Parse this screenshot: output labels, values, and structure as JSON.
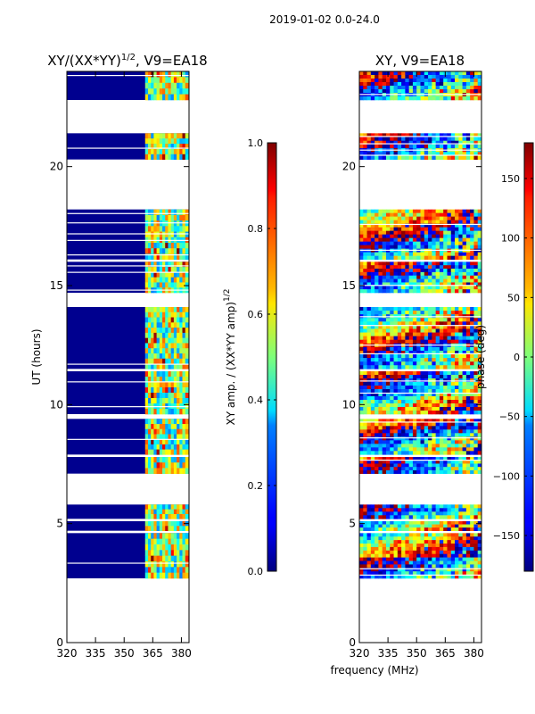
{
  "figure": {
    "suptitle": "2019-01-02 0.0-24.0",
    "xlabel_shared": "frequency (MHz)"
  },
  "chart_data": [
    {
      "type": "heatmap",
      "title_main": "XY/(XX*YY)",
      "title_exp": "1/2",
      "title_rest": ", V9=EA18",
      "xlabel": "",
      "ylabel": "UT (hours)",
      "xlim": [
        320,
        384
      ],
      "ylim": [
        0,
        24
      ],
      "xticks": [
        320,
        335,
        350,
        365,
        380
      ],
      "yticks": [
        0,
        5,
        10,
        15,
        20
      ],
      "colorbar": {
        "label_main": "XY amp. / (XX*YY amp)",
        "label_exp": "1/2",
        "range": [
          0.0,
          1.0
        ],
        "ticks": [
          "0.0",
          "0.2",
          "0.4",
          "0.6",
          "0.8",
          "1.0"
        ],
        "tick_values": [
          0.0,
          0.2,
          0.4,
          0.6,
          0.8,
          1.0
        ],
        "colormap": "jet"
      },
      "data_blocks_hours": [
        [
          2.7,
          4.6
        ],
        [
          4.7,
          5.1
        ],
        [
          5.2,
          5.8
        ],
        [
          7.1,
          7.8
        ],
        [
          7.9,
          9.4
        ],
        [
          9.6,
          11.4
        ],
        [
          11.5,
          14.1
        ],
        [
          14.7,
          16.0
        ],
        [
          16.1,
          18.2
        ],
        [
          20.3,
          21.4
        ],
        [
          22.8,
          24.0
        ]
      ],
      "active_band_mhz": [
        361,
        383
      ]
    },
    {
      "type": "heatmap",
      "title_main": "XY, V9=EA18",
      "xlabel": "frequency (MHz)",
      "ylabel": "",
      "xlim": [
        320,
        384
      ],
      "ylim": [
        0,
        24
      ],
      "xticks": [
        320,
        335,
        350,
        365,
        380
      ],
      "yticks": [
        0,
        5,
        10,
        15,
        20
      ],
      "colorbar": {
        "label_main": "phase (deg)",
        "range": [
          -180,
          180
        ],
        "ticks": [
          "−150",
          "−100",
          "−50",
          "0",
          "50",
          "100",
          "150"
        ],
        "tick_values": [
          -150,
          -100,
          -50,
          0,
          50,
          100,
          150
        ],
        "colormap": "jet"
      },
      "data_blocks_hours": [
        [
          2.7,
          4.6
        ],
        [
          4.7,
          5.1
        ],
        [
          5.2,
          5.8
        ],
        [
          7.1,
          7.8
        ],
        [
          7.9,
          9.4
        ],
        [
          9.6,
          11.4
        ],
        [
          11.5,
          14.1
        ],
        [
          14.7,
          16.0
        ],
        [
          16.1,
          18.2
        ],
        [
          20.3,
          21.4
        ],
        [
          22.8,
          24.0
        ]
      ]
    }
  ]
}
